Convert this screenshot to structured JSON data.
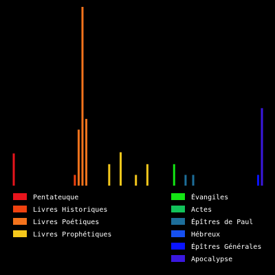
{
  "chart_data": {
    "type": "bar",
    "title": "",
    "xlabel": "",
    "ylabel": "",
    "ylim": [
      0,
      150
    ],
    "x_range": [
      1,
      66
    ],
    "grid": false,
    "legend_placement": "bottom",
    "series": [
      {
        "name": "Pentateuque",
        "color": "#e8141c",
        "points": [
          [
            1,
            27
          ],
          [
            2,
            0
          ],
          [
            3,
            0
          ],
          [
            4,
            0
          ],
          [
            5,
            0
          ]
        ]
      },
      {
        "name": "Livres Historiques",
        "color": "#f0420f",
        "points": [
          [
            6,
            0
          ],
          [
            7,
            0
          ],
          [
            8,
            0
          ],
          [
            9,
            0
          ],
          [
            10,
            0
          ],
          [
            11,
            0
          ],
          [
            12,
            0
          ],
          [
            13,
            0
          ],
          [
            14,
            0
          ],
          [
            15,
            0
          ],
          [
            16,
            0
          ],
          [
            17,
            9
          ]
        ]
      },
      {
        "name": "Livres Poétiques",
        "color": "#f4731c",
        "points": [
          [
            18,
            47
          ],
          [
            19,
            150
          ],
          [
            20,
            56
          ],
          [
            21,
            0
          ],
          [
            22,
            0
          ]
        ]
      },
      {
        "name": "Livres Prophétiques",
        "color": "#f5c81c",
        "points": [
          [
            23,
            0
          ],
          [
            24,
            0
          ],
          [
            25,
            0
          ],
          [
            26,
            18
          ],
          [
            27,
            0
          ],
          [
            28,
            0
          ],
          [
            29,
            28
          ],
          [
            30,
            0
          ],
          [
            31,
            0
          ],
          [
            32,
            0
          ],
          [
            33,
            9
          ],
          [
            34,
            0
          ],
          [
            35,
            0
          ],
          [
            36,
            18
          ],
          [
            37,
            0
          ],
          [
            38,
            0
          ],
          [
            39,
            0
          ]
        ]
      },
      {
        "name": "Évangiles",
        "color": "#14e614",
        "points": [
          [
            40,
            0
          ],
          [
            41,
            0
          ],
          [
            42,
            0
          ],
          [
            43,
            18
          ]
        ]
      },
      {
        "name": "Actes",
        "color": "#12c35a",
        "points": [
          [
            44,
            0
          ]
        ]
      },
      {
        "name": "Épîtres de Paul",
        "color": "#1d6e9a",
        "points": [
          [
            45,
            0
          ],
          [
            46,
            9
          ],
          [
            47,
            0
          ],
          [
            48,
            9
          ],
          [
            49,
            0
          ],
          [
            50,
            0
          ],
          [
            51,
            0
          ],
          [
            52,
            0
          ],
          [
            53,
            0
          ],
          [
            54,
            0
          ],
          [
            55,
            0
          ],
          [
            56,
            0
          ],
          [
            57,
            0
          ]
        ]
      },
      {
        "name": "Hébreux",
        "color": "#1650f0",
        "points": [
          [
            58,
            0
          ]
        ]
      },
      {
        "name": "Épîtres Générales",
        "color": "#0a14ff",
        "points": [
          [
            59,
            0
          ],
          [
            60,
            0
          ],
          [
            61,
            0
          ],
          [
            62,
            0
          ],
          [
            63,
            0
          ],
          [
            64,
            0
          ],
          [
            65,
            9
          ]
        ]
      },
      {
        "name": "Apocalypse",
        "color": "#3a18e0",
        "points": [
          [
            66,
            65
          ]
        ]
      }
    ]
  }
}
